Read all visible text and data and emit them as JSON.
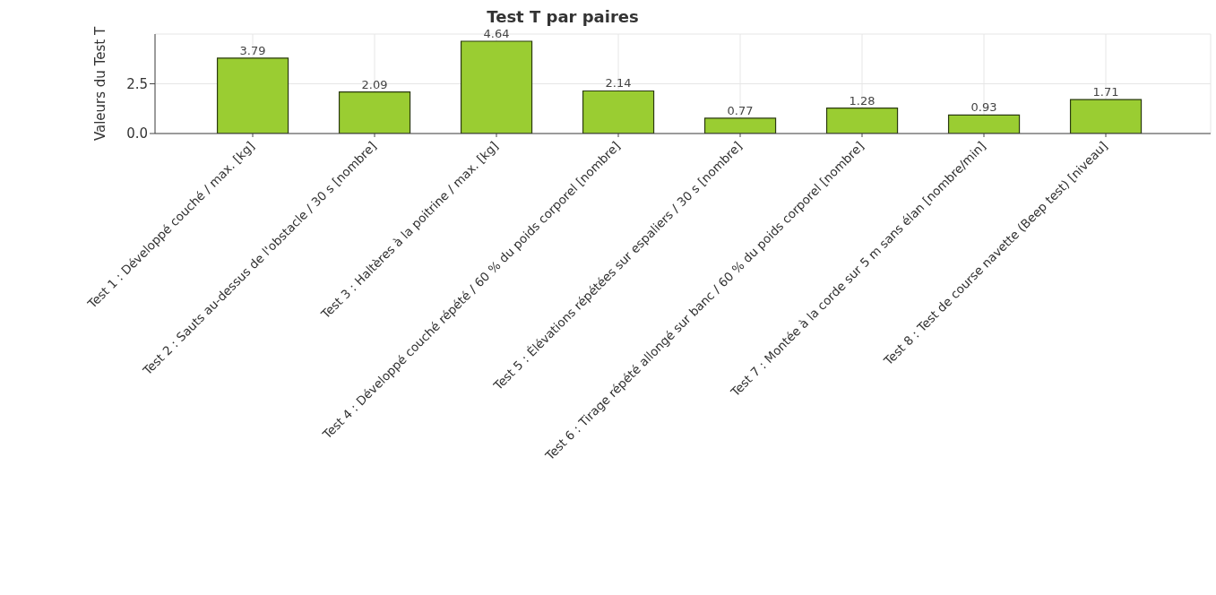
{
  "chart_data": {
    "type": "bar",
    "title": "Test T par paires",
    "ylabel": "Valeurs du Test T",
    "categories": [
      "Test 1 : Développé couché / max. [kg]",
      "Test 2 : Sauts au-dessus de l'obstacle / 30 s [nombre]",
      "Test 3 : Haltères à la poitrine / max. [kg]",
      "Test 4 : Développé couché répété / 60 % du poids corporel [nombre]",
      "Test 5 : Élévations répétées sur espaliers / 30 s [nombre]",
      "Test 6 : Tirage répété allongé sur banc / 60 % du poids corporel [nombre]",
      "Test 7 : Montée à la corde sur 5 m sans élan [nombre/min]",
      "Test 8 : Test de course navette (Beep test) [niveau]"
    ],
    "values": [
      3.79,
      2.09,
      4.64,
      2.14,
      0.77,
      1.28,
      0.93,
      1.71
    ],
    "color": "#9acd32",
    "data_labels": true,
    "ylim": [
      0,
      5
    ],
    "yticks": [
      {
        "value": 0,
        "label": "0.0"
      },
      {
        "value": 2.5,
        "label": "2.5"
      }
    ],
    "grid": true
  }
}
